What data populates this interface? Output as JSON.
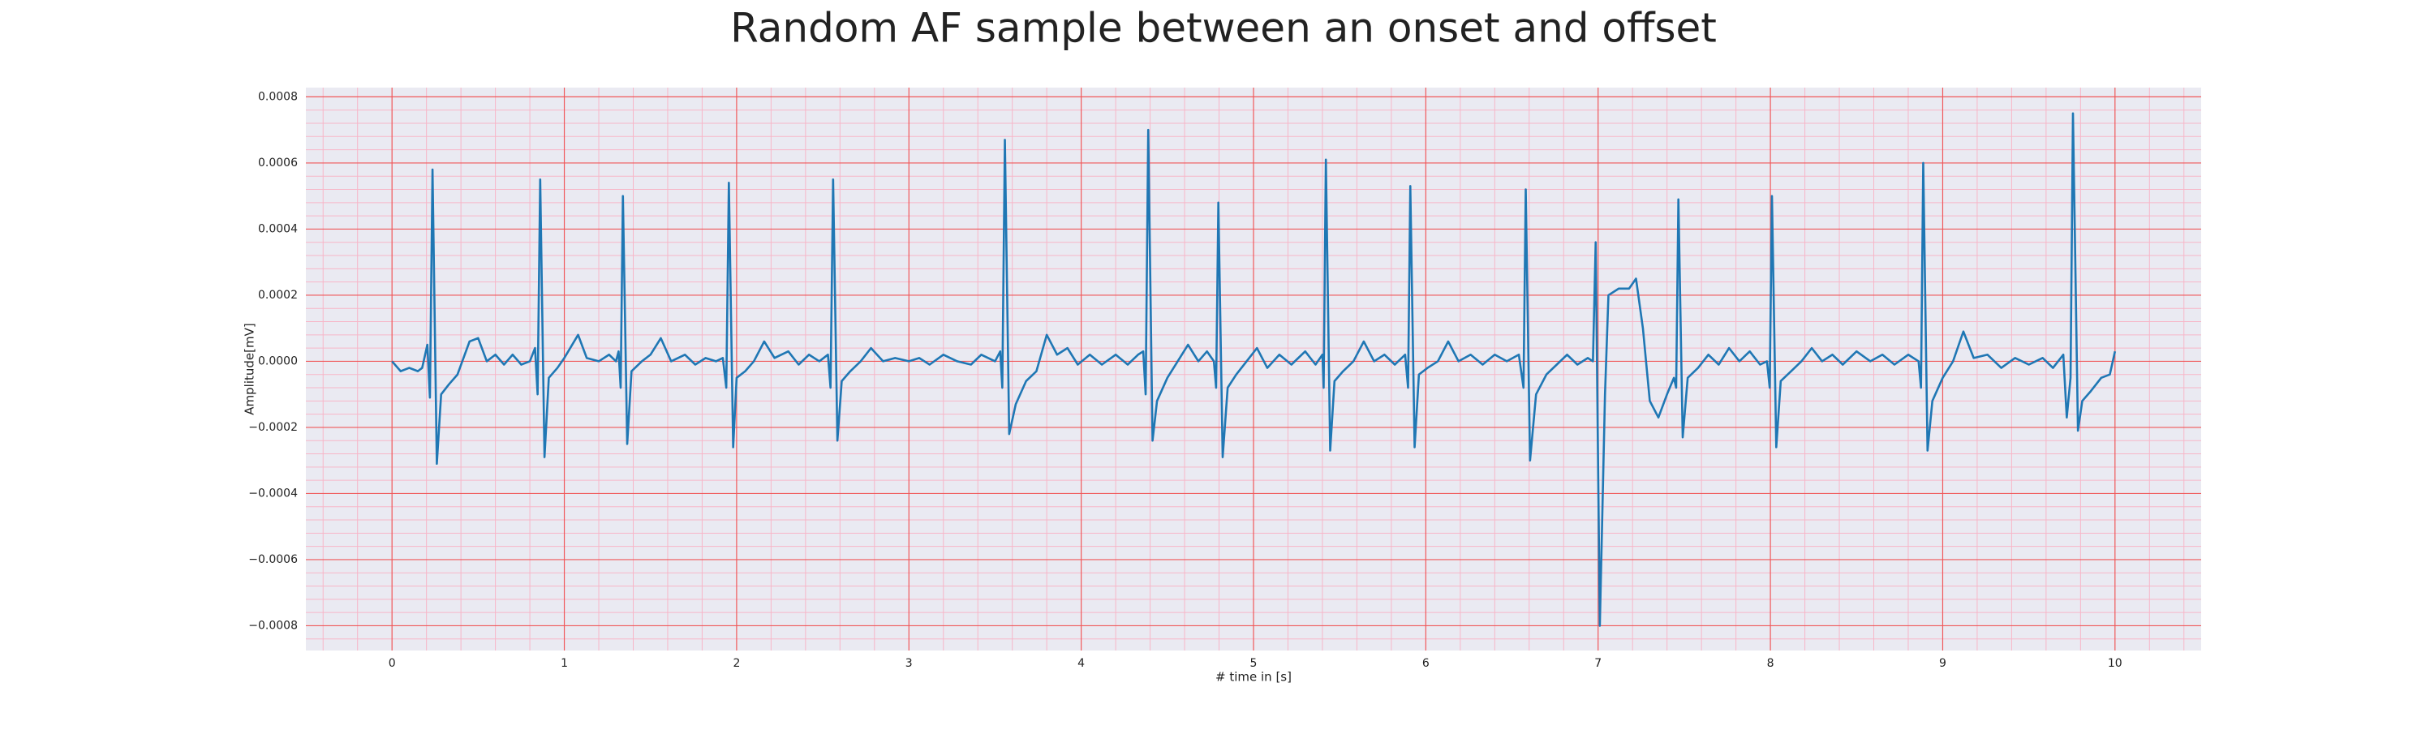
{
  "chart_data": {
    "type": "line",
    "title": "Random AF sample between an onset and offset",
    "xlabel": "# time in [s]",
    "ylabel": "Amplitude[mV]",
    "color": "#1f77b4",
    "grid": true,
    "xlim": [
      -0.5,
      10.5
    ],
    "ylim": [
      -0.000875,
      0.000828
    ],
    "xticks": [
      0,
      1,
      2,
      3,
      4,
      5,
      6,
      7,
      8,
      9,
      10
    ],
    "yticks": [
      {
        "value": -0.0008,
        "label": "−0.0008"
      },
      {
        "value": -0.0006,
        "label": "−0.0006"
      },
      {
        "value": -0.0004,
        "label": "−0.0004"
      },
      {
        "value": -0.0002,
        "label": "−0.0002"
      },
      {
        "value": 0,
        "label": "0.0000"
      },
      {
        "value": 0.0002,
        "label": "0.0002"
      },
      {
        "value": 0.0004,
        "label": "0.0004"
      },
      {
        "value": 0.0006,
        "label": "0.0006"
      },
      {
        "value": 0.0008,
        "label": "0.0008"
      }
    ],
    "x": [
      0,
      0.05,
      0.1,
      0.15,
      0.175,
      0.205,
      0.22,
      0.235,
      0.26,
      0.285,
      0.33,
      0.38,
      0.45,
      0.5,
      0.55,
      0.6,
      0.65,
      0.7,
      0.75,
      0.8,
      0.83,
      0.845,
      0.86,
      0.885,
      0.91,
      0.96,
      1.0,
      1.08,
      1.13,
      1.2,
      1.26,
      1.3,
      1.315,
      1.327,
      1.34,
      1.365,
      1.39,
      1.45,
      1.5,
      1.56,
      1.62,
      1.7,
      1.76,
      1.82,
      1.88,
      1.92,
      1.94,
      1.955,
      1.98,
      2.0,
      2.05,
      2.1,
      2.16,
      2.22,
      2.3,
      2.36,
      2.42,
      2.48,
      2.53,
      2.545,
      2.56,
      2.585,
      2.61,
      2.66,
      2.72,
      2.78,
      2.85,
      2.92,
      3.0,
      3.06,
      3.12,
      3.2,
      3.28,
      3.36,
      3.42,
      3.5,
      3.53,
      3.542,
      3.557,
      3.582,
      3.62,
      3.68,
      3.74,
      3.8,
      3.86,
      3.92,
      3.98,
      4.05,
      4.12,
      4.2,
      4.27,
      4.33,
      4.36,
      4.374,
      4.389,
      4.414,
      4.44,
      4.5,
      4.56,
      4.62,
      4.68,
      4.73,
      4.77,
      4.783,
      4.796,
      4.821,
      4.85,
      4.9,
      4.96,
      5.02,
      5.08,
      5.15,
      5.22,
      5.3,
      5.36,
      5.4,
      5.407,
      5.42,
      5.445,
      5.47,
      5.52,
      5.58,
      5.64,
      5.7,
      5.76,
      5.82,
      5.88,
      5.897,
      5.91,
      5.935,
      5.96,
      6.01,
      6.07,
      6.13,
      6.19,
      6.26,
      6.33,
      6.4,
      6.47,
      6.54,
      6.567,
      6.58,
      6.605,
      6.64,
      6.7,
      6.76,
      6.82,
      6.88,
      6.94,
      6.97,
      6.986,
      7.01,
      7.04,
      7.06,
      7.12,
      7.18,
      7.22,
      7.26,
      7.3,
      7.35,
      7.4,
      7.44,
      7.453,
      7.466,
      7.491,
      7.52,
      7.58,
      7.64,
      7.7,
      7.76,
      7.82,
      7.88,
      7.94,
      7.98,
      7.996,
      8.009,
      8.034,
      8.06,
      8.12,
      8.18,
      8.24,
      8.3,
      8.36,
      8.42,
      8.5,
      8.58,
      8.65,
      8.72,
      8.8,
      8.86,
      8.874,
      8.887,
      8.912,
      8.94,
      9.0,
      9.06,
      9.12,
      9.18,
      9.26,
      9.34,
      9.42,
      9.5,
      9.58,
      9.64,
      9.7,
      9.72,
      9.742,
      9.756,
      9.785,
      9.81,
      9.86,
      9.92,
      9.97,
      10.0
    ],
    "values": [
      0,
      -3e-05,
      -2e-05,
      -3e-05,
      -2e-05,
      5e-05,
      -0.00011,
      0.00058,
      -0.00031,
      -0.0001,
      -7e-05,
      -4e-05,
      6e-05,
      7e-05,
      0.0,
      2e-05,
      -1e-05,
      2e-05,
      -1e-05,
      0.0,
      4e-05,
      -0.0001,
      0.00055,
      -0.00029,
      -5e-05,
      -2e-05,
      1e-05,
      8e-05,
      1e-05,
      0.0,
      2e-05,
      0.0,
      3e-05,
      -8e-05,
      0.0005,
      -0.00025,
      -3e-05,
      0.0,
      2e-05,
      7e-05,
      0.0,
      2e-05,
      -1e-05,
      1e-05,
      0.0,
      1e-05,
      -8e-05,
      0.00054,
      -0.00026,
      -5e-05,
      -3e-05,
      0.0,
      6e-05,
      1e-05,
      3e-05,
      -1e-05,
      2e-05,
      0.0,
      2e-05,
      -8e-05,
      0.00055,
      -0.00024,
      -6e-05,
      -3e-05,
      0.0,
      4e-05,
      0.0,
      1e-05,
      0.0,
      1e-05,
      -1e-05,
      2e-05,
      0.0,
      -1e-05,
      2e-05,
      0.0,
      3e-05,
      -8e-05,
      0.00067,
      -0.00022,
      -0.00013,
      -6e-05,
      -3e-05,
      8e-05,
      2e-05,
      4e-05,
      -1e-05,
      2e-05,
      -1e-05,
      2e-05,
      -1e-05,
      2e-05,
      3e-05,
      -0.0001,
      0.0007,
      -0.00024,
      -0.00012,
      -5e-05,
      0.0,
      5e-05,
      0.0,
      3e-05,
      0.0,
      -8e-05,
      0.00048,
      -0.00029,
      -8e-05,
      -4e-05,
      0.0,
      4e-05,
      -2e-05,
      2e-05,
      -1e-05,
      3e-05,
      -1e-05,
      2e-05,
      -8e-05,
      0.00061,
      -0.00027,
      -6e-05,
      -3e-05,
      0.0,
      6e-05,
      0.0,
      2e-05,
      -1e-05,
      2e-05,
      -8e-05,
      0.00053,
      -0.00026,
      -4e-05,
      -2e-05,
      0.0,
      6e-05,
      0.0,
      2e-05,
      -1e-05,
      2e-05,
      0.0,
      2e-05,
      -8e-05,
      0.00052,
      -0.0003,
      -0.0001,
      -4e-05,
      -1e-05,
      2e-05,
      -1e-05,
      1e-05,
      0.0,
      0.00036,
      -0.0008,
      -0.0001,
      0.0002,
      0.00022,
      0.00022,
      0.00025,
      0.0001,
      -0.00012,
      -0.00017,
      -0.0001,
      -5e-05,
      -8e-05,
      0.00049,
      -0.00023,
      -5e-05,
      -2e-05,
      2e-05,
      -1e-05,
      4e-05,
      0.0,
      3e-05,
      -1e-05,
      0.0,
      -8e-05,
      0.0005,
      -0.00026,
      -6e-05,
      -3e-05,
      0.0,
      4e-05,
      0.0,
      2e-05,
      -1e-05,
      3e-05,
      0.0,
      2e-05,
      -1e-05,
      2e-05,
      0.0,
      -8e-05,
      0.0006,
      -0.00027,
      -0.00012,
      -5e-05,
      0.0,
      9e-05,
      1e-05,
      2e-05,
      -2e-05,
      1e-05,
      -1e-05,
      1e-05,
      -2e-05,
      2e-05,
      -0.00017,
      -5e-05,
      0.00075,
      -0.00021,
      -0.00012,
      -9e-05,
      -5e-05,
      -4e-05,
      3e-05
    ]
  }
}
